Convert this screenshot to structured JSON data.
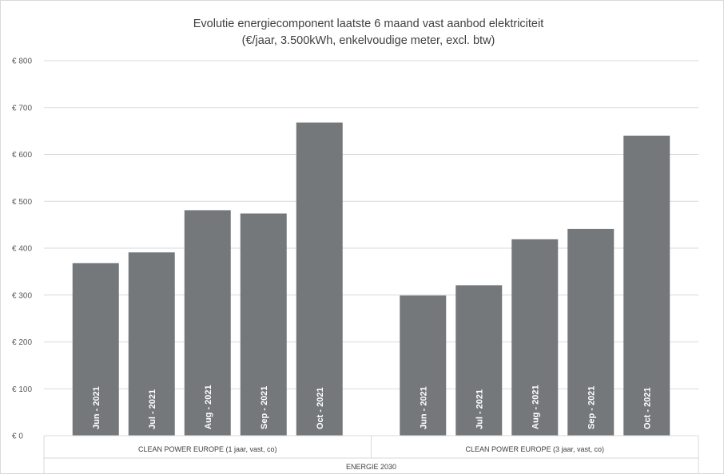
{
  "chart_data": {
    "type": "bar",
    "title": "Evolutie energiecomponent laatste 6 maand vast aanbod elektriciteit",
    "subtitle": "(€/jaar, 3.500kWh, enkelvoudige meter, excl. btw)",
    "ylim": [
      0,
      800
    ],
    "yticks": [
      0,
      100,
      200,
      300,
      400,
      500,
      600,
      700,
      800
    ],
    "ytick_labels": [
      "€ 0",
      "€ 100",
      "€ 200",
      "€ 300",
      "€ 400",
      "€ 500",
      "€ 600",
      "€ 700",
      "€ 800"
    ],
    "grid": true,
    "bar_color": "#75787b",
    "supplier": "ENERGIE 2030",
    "groups": [
      {
        "label": "CLEAN POWER EUROPE (1 jaar, vast, co)",
        "categories": [
          "Jun - 2021",
          "Jul - 2021",
          "Aug - 2021",
          "Sep - 2021",
          "Oct - 2021"
        ],
        "values": [
          368,
          391,
          481,
          474,
          668
        ]
      },
      {
        "label": "CLEAN POWER EUROPE (3 jaar, vast, co)",
        "categories": [
          "Jun - 2021",
          "Jul - 2021",
          "Aug - 2021",
          "Sep - 2021",
          "Oct - 2021"
        ],
        "values": [
          299,
          321,
          419,
          441,
          640
        ]
      }
    ]
  }
}
